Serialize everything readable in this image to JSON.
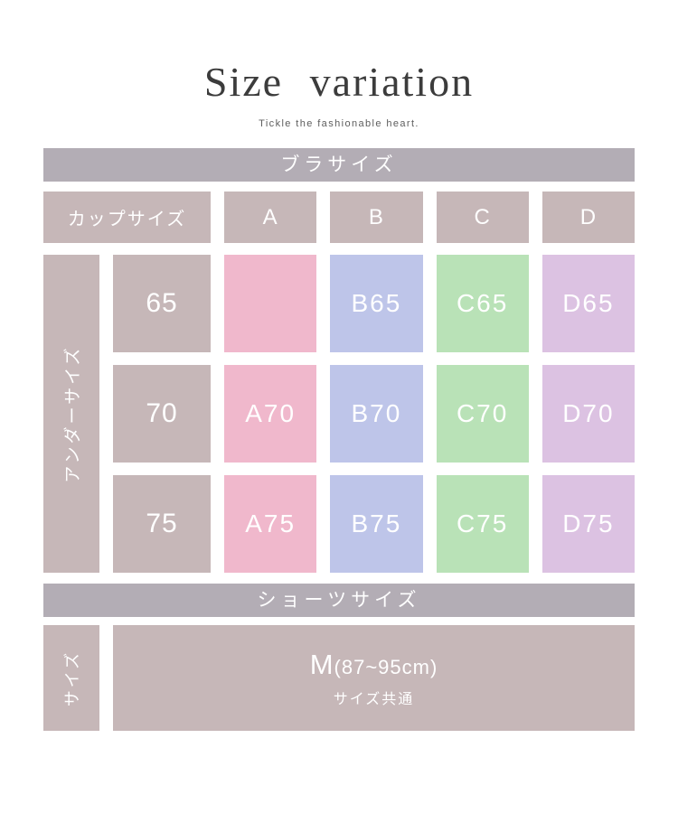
{
  "page": {
    "title": "Size  variation",
    "subtitle": "Tickle the fashionable heart."
  },
  "colors": {
    "section_bar": "#b3adb5",
    "label_cell": "#c6b7b8",
    "cup_a_cell": "#f0b8cc",
    "cup_b_cell": "#bec5e9",
    "cup_c_cell": "#b9e2b7",
    "cup_d_cell": "#dcc2e2",
    "cell_text": "#ffffff",
    "title_text": "#3c3c3c"
  },
  "bra": {
    "section_title": "ブラサイズ",
    "cup_header_label": "カップサイズ",
    "cup_columns": [
      "A",
      "B",
      "C",
      "D"
    ],
    "under_size_label": "アンダーサイズ",
    "rows": [
      {
        "under": "65",
        "cells": [
          "",
          "B65",
          "C65",
          "D65"
        ]
      },
      {
        "under": "70",
        "cells": [
          "A70",
          "B70",
          "C70",
          "D70"
        ]
      },
      {
        "under": "75",
        "cells": [
          "A75",
          "B75",
          "C75",
          "D75"
        ]
      }
    ]
  },
  "shorts": {
    "section_title": "ショーツサイズ",
    "size_label": "サイズ",
    "value_main": "M",
    "value_range": "(87~95cm)",
    "value_note": "サイズ共通"
  },
  "chart_data": {
    "type": "table",
    "tables": [
      {
        "title": "ブラサイズ",
        "columns": [
          "カップサイズ",
          "A",
          "B",
          "C",
          "D"
        ],
        "row_group_header": "アンダーサイズ",
        "rows": [
          [
            "65",
            "",
            "B65",
            "C65",
            "D65"
          ],
          [
            "70",
            "A70",
            "B70",
            "C70",
            "D70"
          ],
          [
            "75",
            "A75",
            "B75",
            "C75",
            "D75"
          ]
        ],
        "notes": "A65 cell is colored but empty (size not available)"
      },
      {
        "title": "ショーツサイズ",
        "row_group_header": "サイズ",
        "rows": [
          [
            "M(87~95cm)",
            "サイズ共通"
          ]
        ]
      }
    ]
  }
}
